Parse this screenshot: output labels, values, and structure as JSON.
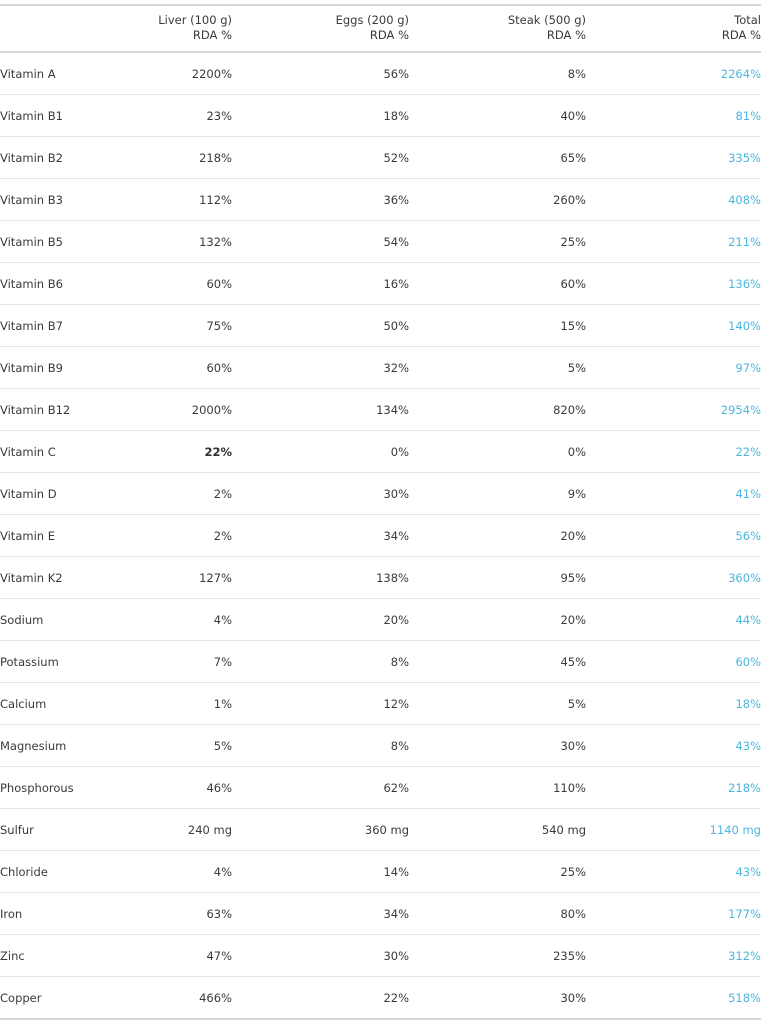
{
  "headers": {
    "nutrient": "",
    "liver": {
      "line1": "Liver (100 g)",
      "line2": "RDA %"
    },
    "eggs": {
      "line1": "Eggs  (200 g)",
      "line2": "RDA %"
    },
    "steak": {
      "line1": "Steak (500 g)",
      "line2": "RDA %"
    },
    "total": {
      "line1": "Total",
      "line2": "RDA %"
    }
  },
  "colors": {
    "total_text": "#4ab6df",
    "body_text": "#3a3a3a",
    "rule": "#d8d8d8"
  },
  "rows": [
    {
      "name": "Vitamin A",
      "liver": "2200%",
      "eggs": "56%",
      "steak": "8%",
      "total": "2264%"
    },
    {
      "name": "Vitamin B1",
      "liver": "23%",
      "eggs": "18%",
      "steak": "40%",
      "total": "81%"
    },
    {
      "name": "Vitamin B2",
      "liver": "218%",
      "eggs": "52%",
      "steak": "65%",
      "total": "335%"
    },
    {
      "name": "Vitamin B3",
      "liver": "112%",
      "eggs": "36%",
      "steak": "260%",
      "total": "408%"
    },
    {
      "name": "Vitamin B5",
      "liver": "132%",
      "eggs": "54%",
      "steak": "25%",
      "total": "211%"
    },
    {
      "name": "Vitamin B6",
      "liver": "60%",
      "eggs": "16%",
      "steak": "60%",
      "total": "136%"
    },
    {
      "name": "Vitamin B7",
      "liver": "75%",
      "eggs": "50%",
      "steak": "15%",
      "total": "140%"
    },
    {
      "name": "Vitamin B9",
      "liver": "60%",
      "eggs": "32%",
      "steak": "5%",
      "total": "97%"
    },
    {
      "name": "Vitamin B12",
      "liver": "2000%",
      "eggs": "134%",
      "steak": "820%",
      "total": "2954%"
    },
    {
      "name": "Vitamin C",
      "liver": "22%",
      "eggs": "0%",
      "steak": "0%",
      "total": "22%",
      "liver_bold": true
    },
    {
      "name": "Vitamin D",
      "liver": "2%",
      "eggs": "30%",
      "steak": "9%",
      "total": "41%"
    },
    {
      "name": "Vitamin E",
      "liver": "2%",
      "eggs": "34%",
      "steak": "20%",
      "total": "56%"
    },
    {
      "name": "Vitamin K2",
      "liver": "127%",
      "eggs": "138%",
      "steak": "95%",
      "total": "360%"
    },
    {
      "name": "Sodium",
      "liver": "4%",
      "eggs": "20%",
      "steak": "20%",
      "total": "44%"
    },
    {
      "name": "Potassium",
      "liver": "7%",
      "eggs": "8%",
      "steak": "45%",
      "total": "60%"
    },
    {
      "name": "Calcium",
      "liver": "1%",
      "eggs": "12%",
      "steak": "5%",
      "total": "18%"
    },
    {
      "name": "Magnesium",
      "liver": "5%",
      "eggs": "8%",
      "steak": "30%",
      "total": "43%"
    },
    {
      "name": "Phosphorous",
      "liver": "46%",
      "eggs": "62%",
      "steak": "110%",
      "total": "218%"
    },
    {
      "name": "Sulfur",
      "liver": "240 mg",
      "eggs": "360 mg",
      "steak": "540 mg",
      "total": "1140 mg"
    },
    {
      "name": "Chloride",
      "liver": "4%",
      "eggs": "14%",
      "steak": "25%",
      "total": "43%"
    },
    {
      "name": "Iron",
      "liver": "63%",
      "eggs": "34%",
      "steak": "80%",
      "total": "177%"
    },
    {
      "name": "Zinc",
      "liver": "47%",
      "eggs": "30%",
      "steak": "235%",
      "total": "312%"
    },
    {
      "name": "Copper",
      "liver": "466%",
      "eggs": "22%",
      "steak": "30%",
      "total": "518%"
    }
  ]
}
